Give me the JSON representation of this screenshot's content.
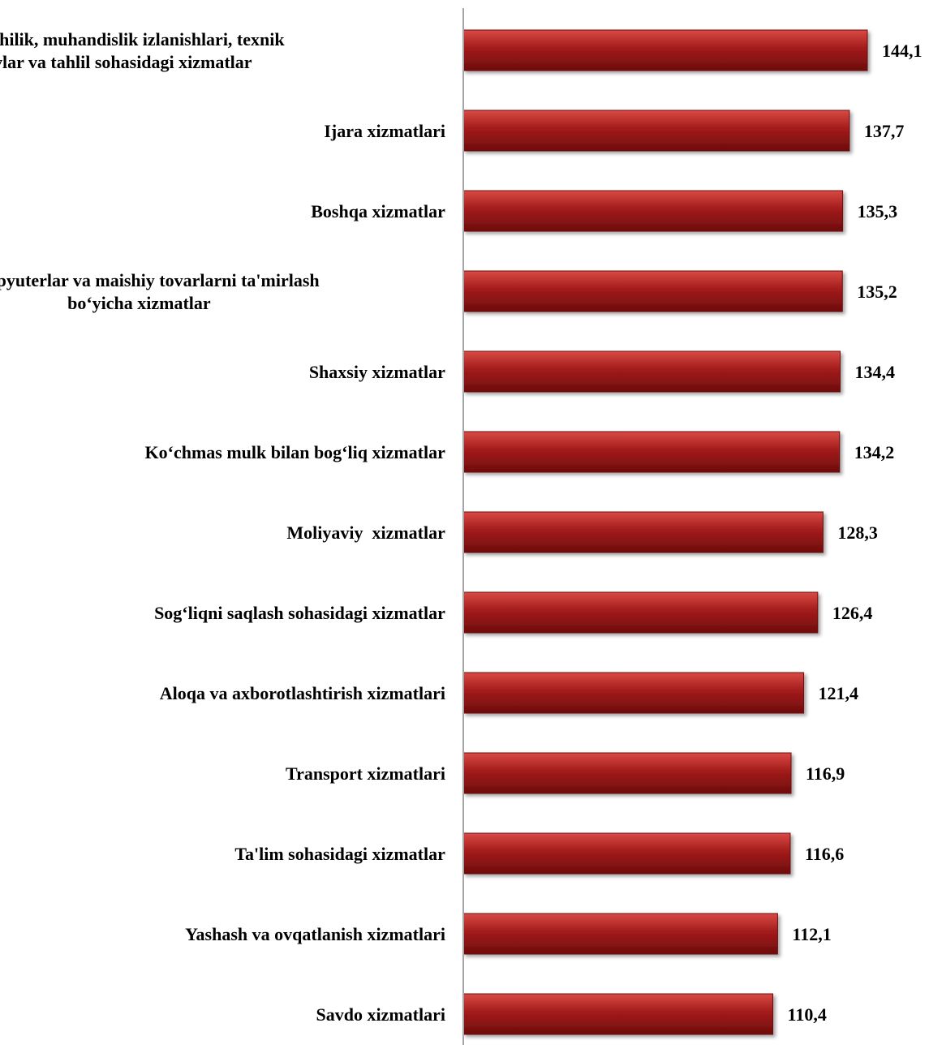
{
  "chart_data": {
    "type": "bar",
    "orientation": "horizontal",
    "title": "",
    "xlabel": "",
    "ylabel": "",
    "grid": false,
    "legend": "none",
    "bar_color": "#a31b1b",
    "bar_highlight": "#d94a44",
    "bar_shadow": "#6e0d0d",
    "axis_color": "#a6a6a6",
    "categories": [
      [
        "Me'morchilik, muhandislik izlanishlari, texnik",
        "sinovlar va tahlil sohasidagi xizmatlar"
      ],
      [
        "Ijara xizmatlari"
      ],
      [
        "Boshqa xizmatlar"
      ],
      [
        "Kompyuterlar va maishiy tovarlarni ta'mirlash",
        "bo‘yicha xizmatlar"
      ],
      [
        "Shaxsiy xizmatlar"
      ],
      [
        "Ko‘chmas mulk bilan bog‘liq xizmatlar"
      ],
      [
        "Moliyaviy  xizmatlar"
      ],
      [
        "Sog‘liqni saqlash sohasidagi xizmatlar"
      ],
      [
        "Aloqa va axborotlashtirish xizmatlari"
      ],
      [
        "Transport xizmatlari"
      ],
      [
        "Ta'lim sohasidagi xizmatlar"
      ],
      [
        "Yashash va ovqatlanish xizmatlari"
      ],
      [
        "Savdo xizmatlari"
      ]
    ],
    "values": [
      144.1,
      137.7,
      135.3,
      135.2,
      134.4,
      134.2,
      128.3,
      126.4,
      121.4,
      116.9,
      116.6,
      112.1,
      110.4
    ],
    "value_labels": [
      "144,1",
      "137,7",
      "135,3",
      "135,2",
      "134,4",
      "134,2",
      "128,3",
      "126,4",
      "121,4",
      "116,9",
      "116,6",
      "112,1",
      "110,4"
    ]
  }
}
